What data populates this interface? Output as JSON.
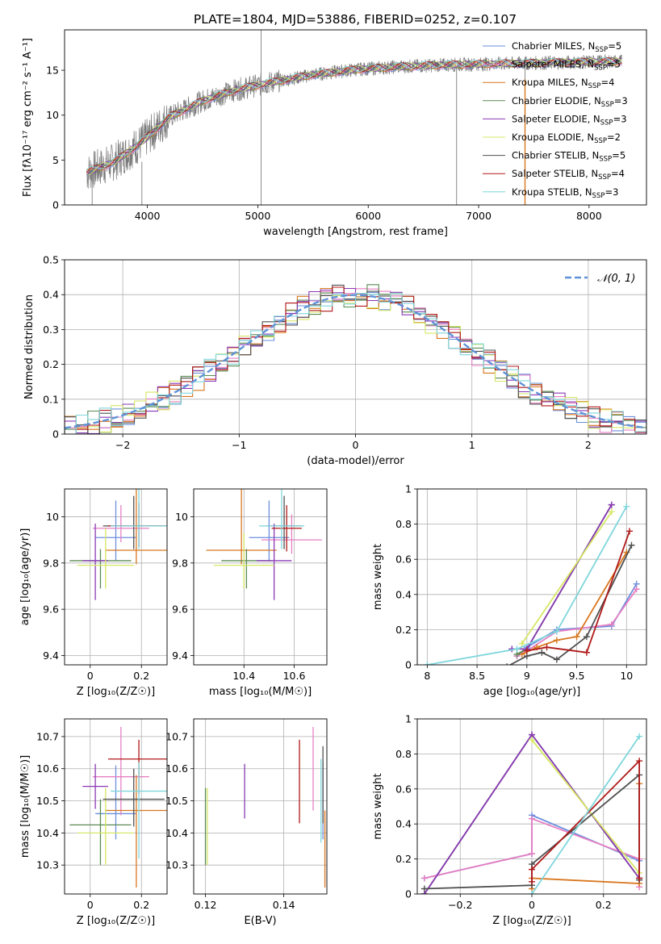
{
  "figure_title": "PLATE=1804, MJD=53886, FIBERID=0252, z=0.107",
  "models": [
    {
      "name": "Chabrier MILES",
      "nssp": "5",
      "color": "#6b8fdc"
    },
    {
      "name": "Salpeter MILES",
      "nssp": "5",
      "color": "#e77fc3"
    },
    {
      "name": "Kroupa MILES",
      "nssp": "4",
      "color": "#d9771f"
    },
    {
      "name": "Chabrier ELODIE",
      "nssp": "3",
      "color": "#5a8a52"
    },
    {
      "name": "Salpeter ELODIE",
      "nssp": "3",
      "color": "#8a39b5"
    },
    {
      "name": "Kroupa ELODIE",
      "nssp": "2",
      "color": "#d6e765"
    },
    {
      "name": "Chabrier STELIB",
      "nssp": "5",
      "color": "#505050"
    },
    {
      "name": "Salpeter STELIB",
      "nssp": "4",
      "color": "#b01919"
    },
    {
      "name": "Kroupa STELIB",
      "nssp": "3",
      "color": "#7fd6dc"
    }
  ],
  "chart_data": [
    {
      "id": "spectrum",
      "type": "line",
      "xlabel": "wavelength [Angstrom, rest frame]",
      "ylabel": "Flux [fλ10⁻¹⁷ erg cm⁻² s⁻¹ A⁻¹]",
      "xlim": [
        3250,
        8520
      ],
      "ylim": [
        0,
        19.5
      ],
      "xticks": [
        4000,
        5000,
        6000,
        7000,
        8000
      ],
      "yticks": [
        0,
        5,
        10,
        15
      ],
      "grid": false,
      "legend": "upper right",
      "continuum": {
        "x": [
          3450,
          3700,
          3950,
          4200,
          4500,
          4800,
          5100,
          5500,
          5900,
          6300,
          6700,
          7100,
          7500,
          7900,
          8300
        ],
        "y": [
          3.6,
          4.8,
          7.0,
          9.8,
          11.6,
          12.8,
          13.6,
          14.5,
          15.1,
          15.4,
          15.6,
          15.7,
          15.8,
          15.9,
          16.0
        ]
      },
      "spikes": [
        {
          "x": 5030,
          "ylow": 0,
          "yhigh": 19.5
        },
        {
          "x": 6800,
          "ylow": 0,
          "yhigh": 15.5
        },
        {
          "x": 7420,
          "ylow": 0,
          "yhigh": 16.5
        },
        {
          "x": 3500,
          "ylow": 0,
          "yhigh": 3.5
        },
        {
          "x": 3950,
          "ylow": 0,
          "yhigh": 4.8
        }
      ]
    },
    {
      "id": "residuals",
      "type": "step",
      "xlabel": "(data-model)/error",
      "ylabel": "Normed distribution",
      "xlim": [
        -2.5,
        2.5
      ],
      "ylim": [
        0,
        0.5
      ],
      "xticks": [
        -2,
        -1,
        0,
        1,
        2
      ],
      "yticks": [
        0.0,
        0.1,
        0.2,
        0.3,
        0.4,
        0.5
      ],
      "grid": true,
      "legend": "upper right",
      "normal_label": "𝒩(0, 1)",
      "normal_color": "#5f92d6"
    },
    {
      "id": "age_vs_Z",
      "type": "errorbar",
      "xlabel": "Z [log₁₀(Z/Z☉)]",
      "ylabel": "age  [log₁₀(age/yr)]",
      "xlim": [
        -0.1,
        0.3
      ],
      "ylim": [
        9.36,
        10.12
      ],
      "xticks": [
        0.0,
        0.2
      ],
      "yticks": [
        9.4,
        9.6,
        9.8,
        10.0
      ],
      "grid": true,
      "points": [
        {
          "series": 0,
          "x": 0.1,
          "xerr": 0.08,
          "y": 9.91,
          "yerr": [
            0.1,
            0.16
          ]
        },
        {
          "series": 1,
          "x": 0.12,
          "xerr": 0.11,
          "y": 9.95,
          "yerr": [
            0.06,
            0.1
          ]
        },
        {
          "series": 2,
          "x": 0.18,
          "xerr": 0.12,
          "y": 9.855,
          "yerr": [
            0.06,
            0.47
          ]
        },
        {
          "series": 3,
          "x": 0.04,
          "xerr": 0.12,
          "y": 9.81,
          "yerr": [
            0.12,
            0.05
          ]
        },
        {
          "series": 4,
          "x": 0.02,
          "xerr": 0.05,
          "y": 9.81,
          "yerr": [
            0.17,
            0.16
          ]
        },
        {
          "series": 5,
          "x": 0.06,
          "xerr": 0.11,
          "y": 9.79,
          "yerr": [
            0.1,
            0.16
          ]
        },
        {
          "series": 6,
          "x": 0.17,
          "xerr": 0.12,
          "y": 9.96,
          "yerr": [
            0.1,
            0.13
          ]
        },
        {
          "series": 7,
          "x": 0.19,
          "xerr": 0.12,
          "y": 9.96,
          "yerr": [
            0.09,
            0.1
          ]
        },
        {
          "series": 8,
          "x": 0.19,
          "xerr": 0.11,
          "y": 9.96,
          "yerr": [
            0.1,
            0.28
          ]
        }
      ]
    },
    {
      "id": "age_vs_mass",
      "type": "errorbar",
      "xlabel": "mass [log₁₀(M/M☉)]",
      "ylabel": "",
      "xlim": [
        10.2,
        10.73
      ],
      "ylim": [
        9.36,
        10.12
      ],
      "xticks": [
        10.4,
        10.6
      ],
      "yticks": [
        9.4,
        9.6,
        9.8,
        10.0
      ],
      "grid": true,
      "points": [
        {
          "series": 0,
          "x": 10.5,
          "xerr": 0.08,
          "y": 9.91,
          "yerr": [
            0.1,
            0.16
          ]
        },
        {
          "series": 1,
          "x": 10.59,
          "xerr": 0.12,
          "y": 9.9,
          "yerr": [
            0.06,
            0.11
          ]
        },
        {
          "series": 2,
          "x": 10.39,
          "xerr": 0.14,
          "y": 9.855,
          "yerr": [
            0.06,
            0.47
          ]
        },
        {
          "series": 3,
          "x": 10.41,
          "xerr": 0.1,
          "y": 9.81,
          "yerr": [
            0.12,
            0.05
          ]
        },
        {
          "series": 4,
          "x": 10.52,
          "xerr": 0.07,
          "y": 9.81,
          "yerr": [
            0.17,
            0.16
          ]
        },
        {
          "series": 5,
          "x": 10.4,
          "xerr": 0.12,
          "y": 9.79,
          "yerr": [
            0.1,
            0.14
          ]
        },
        {
          "series": 6,
          "x": 10.56,
          "xerr": 0.07,
          "y": 9.96,
          "yerr": [
            0.1,
            0.13
          ]
        },
        {
          "series": 7,
          "x": 10.57,
          "xerr": 0.06,
          "y": 9.95,
          "yerr": [
            0.1,
            0.1
          ]
        },
        {
          "series": 8,
          "x": 10.55,
          "xerr": 0.09,
          "y": 9.96,
          "yerr": [
            0.1,
            0.28
          ]
        }
      ]
    },
    {
      "id": "weight_vs_age",
      "type": "line",
      "xlabel": "age  [log₁₀(age/yr)]",
      "ylabel": "mass weight",
      "xlim": [
        7.9,
        10.2
      ],
      "ylim": [
        0,
        1
      ],
      "xticks": [
        8.0,
        8.5,
        9.0,
        9.5,
        10.0
      ],
      "yticks": [
        0.0,
        0.2,
        0.4,
        0.6,
        0.8,
        1.0
      ],
      "grid": true,
      "series": [
        {
          "series": 0,
          "x": [
            8.9,
            9.0,
            9.3,
            9.85,
            10.1
          ],
          "y": [
            0.05,
            0.1,
            0.2,
            0.22,
            0.46
          ]
        },
        {
          "series": 1,
          "x": [
            8.9,
            9.0,
            9.3,
            9.85,
            10.1
          ],
          "y": [
            0.05,
            0.08,
            0.19,
            0.23,
            0.43
          ]
        },
        {
          "series": 2,
          "x": [
            8.95,
            9.1,
            9.3,
            9.5,
            10.0
          ],
          "y": [
            0.06,
            0.1,
            0.14,
            0.16,
            0.64
          ]
        },
        {
          "series": 3,
          "x": [
            8.9,
            9.0,
            9.85
          ],
          "y": [
            0.06,
            0.09,
            0.91
          ]
        },
        {
          "series": 4,
          "x": [
            8.85,
            9.0,
            9.85
          ],
          "y": [
            0.09,
            0.09,
            0.91
          ]
        },
        {
          "series": 5,
          "x": [
            8.95,
            9.85
          ],
          "y": [
            0.12,
            0.87
          ]
        },
        {
          "series": 6,
          "x": [
            8.8,
            9.0,
            9.15,
            9.3,
            9.6,
            10.05
          ],
          "y": [
            -0.01,
            0.05,
            0.07,
            0.03,
            0.16,
            0.68
          ]
        },
        {
          "series": 7,
          "x": [
            9.0,
            9.2,
            9.6,
            10.03
          ],
          "y": [
            0.08,
            0.1,
            0.07,
            0.76
          ]
        },
        {
          "series": 8,
          "x": [
            8.0,
            8.9,
            9.3,
            10.0
          ],
          "y": [
            0.0,
            0.09,
            0.19,
            0.9
          ]
        }
      ]
    },
    {
      "id": "mass_vs_Z",
      "type": "errorbar",
      "xlabel": "Z [log₁₀(Z/Z☉)]",
      "ylabel": "mass [log₁₀(M/M☉)]",
      "xlim": [
        -0.1,
        0.3
      ],
      "ylim": [
        10.21,
        10.755
      ],
      "xticks": [
        0.0,
        0.2
      ],
      "yticks": [
        10.3,
        10.4,
        10.5,
        10.6,
        10.7
      ],
      "grid": true,
      "points": [
        {
          "series": 0,
          "x": 0.1,
          "xerr": 0.08,
          "y": 10.46,
          "yerr": [
            0.08,
            0.15
          ]
        },
        {
          "series": 1,
          "x": 0.12,
          "xerr": 0.11,
          "y": 10.575,
          "yerr": [
            0.12,
            0.155
          ]
        },
        {
          "series": 2,
          "x": 0.18,
          "xerr": 0.12,
          "y": 10.47,
          "yerr": [
            0.24,
            0.11
          ]
        },
        {
          "series": 3,
          "x": 0.04,
          "xerr": 0.12,
          "y": 10.425,
          "yerr": [
            0.125,
            0.08
          ]
        },
        {
          "series": 4,
          "x": 0.02,
          "xerr": 0.05,
          "y": 10.545,
          "yerr": [
            0.07,
            0.07
          ]
        },
        {
          "series": 5,
          "x": 0.06,
          "xerr": 0.11,
          "y": 10.4,
          "yerr": [
            0.1,
            0.14
          ]
        },
        {
          "series": 6,
          "x": 0.17,
          "xerr": 0.12,
          "y": 10.505,
          "yerr": [
            0.085,
            0.095
          ]
        },
        {
          "series": 7,
          "x": 0.19,
          "xerr": 0.12,
          "y": 10.63,
          "yerr": [
            0.11,
            0.06
          ]
        },
        {
          "series": 8,
          "x": 0.19,
          "xerr": 0.11,
          "y": 10.53,
          "yerr": [
            0.21,
            0.09
          ]
        }
      ]
    },
    {
      "id": "mass_vs_ebv",
      "type": "errorbar",
      "xlabel": "E(B-V)",
      "ylabel": "",
      "xlim": [
        0.117,
        0.151
      ],
      "ylim": [
        10.21,
        10.755
      ],
      "xticks": [
        0.12,
        0.14
      ],
      "yticks": [
        10.3,
        10.4,
        10.5,
        10.6,
        10.7
      ],
      "grid": true,
      "points": [
        {
          "series": 0,
          "x": 0.15,
          "xerr": 0,
          "y": 10.5,
          "yerr": [
            0.12,
            0.12
          ]
        },
        {
          "series": 1,
          "x": 0.1475,
          "xerr": 0,
          "y": 10.6,
          "yerr": [
            0.13,
            0.13
          ]
        },
        {
          "series": 2,
          "x": 0.1505,
          "xerr": 0,
          "y": 10.35,
          "yerr": [
            0.12,
            0.12
          ]
        },
        {
          "series": 3,
          "x": 0.12,
          "xerr": 0,
          "y": 10.42,
          "yerr": [
            0.12,
            0.12
          ]
        },
        {
          "series": 4,
          "x": 0.13,
          "xerr": 0,
          "y": 10.53,
          "yerr": [
            0.085,
            0.085
          ]
        },
        {
          "series": 5,
          "x": 0.1205,
          "xerr": 0,
          "y": 10.42,
          "yerr": [
            0.12,
            0.12
          ]
        },
        {
          "series": 6,
          "x": 0.15,
          "xerr": 0,
          "y": 10.55,
          "yerr": [
            0.12,
            0.12
          ]
        },
        {
          "series": 7,
          "x": 0.144,
          "xerr": 0,
          "y": 10.56,
          "yerr": [
            0.13,
            0.13
          ]
        },
        {
          "series": 8,
          "x": 0.1495,
          "xerr": 0,
          "y": 10.5,
          "yerr": [
            0.13,
            0.13
          ]
        }
      ]
    },
    {
      "id": "weight_vs_Z",
      "type": "line",
      "xlabel": "Z [log₁₀(Z/Z☉)]",
      "ylabel": "mass weight",
      "xlim": [
        -0.32,
        0.32
      ],
      "ylim": [
        0,
        1
      ],
      "xticks": [
        -0.2,
        0.0,
        0.2
      ],
      "yticks": [
        0.0,
        0.2,
        0.4,
        0.6,
        0.8,
        1.0
      ],
      "grid": true,
      "series": [
        {
          "series": 0,
          "x": [
            -0.3,
            0.0,
            0.0,
            0.3
          ],
          "y": [
            0.09,
            0.23,
            0.45,
            0.19
          ]
        },
        {
          "series": 1,
          "x": [
            -0.3,
            0.0,
            0.0,
            0.3,
            0.3
          ],
          "y": [
            0.09,
            0.23,
            0.43,
            0.2,
            0.04
          ]
        },
        {
          "series": 2,
          "x": [
            0.0,
            0.0,
            0.3,
            0.3
          ],
          "y": [
            0.03,
            0.09,
            0.06,
            0.63
          ]
        },
        {
          "series": 3,
          "x": [
            -0.3,
            0.0,
            0.3
          ],
          "y": [
            0.0,
            0.91,
            0.09
          ]
        },
        {
          "series": 4,
          "x": [
            -0.3,
            0.0,
            0.3
          ],
          "y": [
            0.0,
            0.91,
            0.09
          ]
        },
        {
          "series": 5,
          "x": [
            0.0,
            0.3
          ],
          "y": [
            0.88,
            0.12
          ]
        },
        {
          "series": 6,
          "x": [
            -0.3,
            0.0,
            0.0,
            0.3,
            0.3
          ],
          "y": [
            0.03,
            0.05,
            0.17,
            0.68,
            0.08
          ]
        },
        {
          "series": 7,
          "x": [
            0.0,
            0.0,
            0.3,
            0.3
          ],
          "y": [
            0.07,
            0.14,
            0.76,
            0.09
          ]
        },
        {
          "series": 8,
          "x": [
            0.0,
            0.3
          ],
          "y": [
            0.0,
            0.9
          ]
        }
      ]
    }
  ]
}
